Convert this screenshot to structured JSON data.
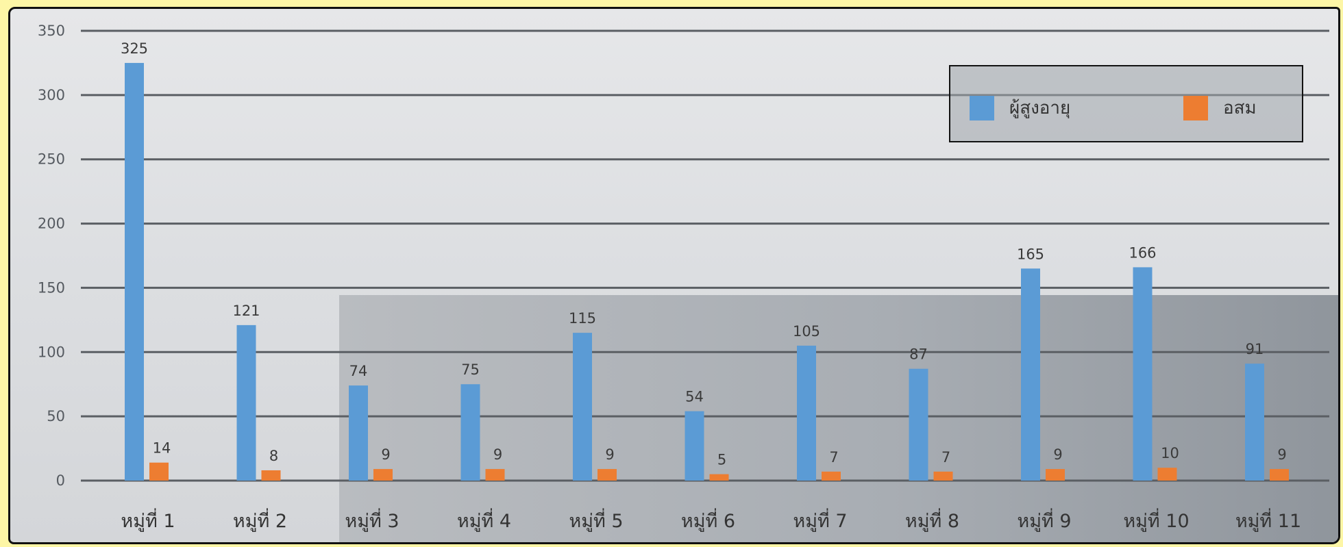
{
  "chart_data": {
    "type": "bar",
    "categories": [
      "หมู่ที่ 1",
      "หมู่ที่ 2",
      "หมู่ที่ 3",
      "หมู่ที่ 4",
      "หมู่ที่ 5",
      "หมู่ที่ 6",
      "หมู่ที่ 7",
      "หมู่ที่ 8",
      "หมู่ที่ 9",
      "หมู่ที่ 10",
      "หมู่ที่ 11"
    ],
    "series": [
      {
        "name": "ผู้สูงอายุ",
        "color": "#5b9bd5",
        "values": [
          325,
          121,
          74,
          75,
          115,
          54,
          105,
          87,
          165,
          166,
          91
        ]
      },
      {
        "name": "อสม",
        "color": "#ed7d31",
        "values": [
          14,
          8,
          9,
          9,
          9,
          5,
          7,
          7,
          9,
          10,
          9
        ]
      }
    ],
    "ylim": [
      0,
      350
    ],
    "yticks": [
      0,
      50,
      100,
      150,
      200,
      250,
      300,
      350
    ],
    "grid": true,
    "legend_position": "top-right",
    "title": "",
    "xlabel": "",
    "ylabel": ""
  },
  "legend": {
    "series1_label": "ผู้สูงอายุ",
    "series2_label": "อสม"
  },
  "colors": {
    "frame_background": "#fdf6a6",
    "gridline": "#5a5e63"
  }
}
